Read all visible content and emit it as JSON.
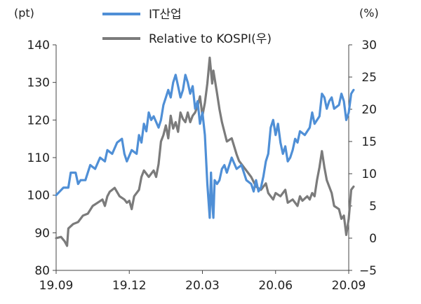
{
  "chart_data": {
    "type": "line",
    "left_unit": "(pt)",
    "right_unit": "(%)",
    "left_axis": {
      "min": 80,
      "max": 140,
      "ticks": [
        140,
        130,
        120,
        110,
        100,
        90,
        80
      ]
    },
    "right_axis": {
      "min": -5,
      "max": 30,
      "ticks": [
        "30",
        "25",
        "20",
        "15",
        "10",
        "5",
        "0",
        "−5"
      ],
      "tick_values": [
        30,
        25,
        20,
        15,
        10,
        5,
        0,
        -5
      ]
    },
    "x_axis": {
      "min": 0,
      "max": 12,
      "tick_positions": [
        0,
        3,
        6,
        9,
        12
      ],
      "tick_labels": [
        "19.09",
        "19.12",
        "20.03",
        "20.06",
        "20.09"
      ]
    },
    "legend": {
      "position": "top"
    },
    "series": [
      {
        "name": "IT산업",
        "axis": "left",
        "color": "#4f8fd6",
        "points": [
          [
            0,
            100
          ],
          [
            0.3,
            102
          ],
          [
            0.5,
            102
          ],
          [
            0.6,
            106
          ],
          [
            0.8,
            106
          ],
          [
            0.9,
            103
          ],
          [
            1.0,
            104
          ],
          [
            1.2,
            104
          ],
          [
            1.4,
            108
          ],
          [
            1.6,
            107
          ],
          [
            1.8,
            110
          ],
          [
            2.0,
            109
          ],
          [
            2.1,
            112
          ],
          [
            2.3,
            111
          ],
          [
            2.5,
            114
          ],
          [
            2.7,
            115
          ],
          [
            2.8,
            111
          ],
          [
            2.9,
            109
          ],
          [
            3.1,
            112
          ],
          [
            3.3,
            111
          ],
          [
            3.4,
            116
          ],
          [
            3.5,
            114
          ],
          [
            3.6,
            119
          ],
          [
            3.7,
            117
          ],
          [
            3.8,
            122
          ],
          [
            3.9,
            120
          ],
          [
            4.0,
            121
          ],
          [
            4.2,
            118
          ],
          [
            4.3,
            120
          ],
          [
            4.4,
            124
          ],
          [
            4.5,
            126
          ],
          [
            4.6,
            128
          ],
          [
            4.7,
            126
          ],
          [
            4.8,
            130
          ],
          [
            4.9,
            132
          ],
          [
            5.0,
            129
          ],
          [
            5.1,
            126
          ],
          [
            5.2,
            128
          ],
          [
            5.3,
            132
          ],
          [
            5.4,
            130
          ],
          [
            5.5,
            127
          ],
          [
            5.6,
            129
          ],
          [
            5.7,
            123
          ],
          [
            5.8,
            125
          ],
          [
            5.9,
            119
          ],
          [
            6.0,
            122
          ],
          [
            6.1,
            116
          ],
          [
            6.2,
            103
          ],
          [
            6.3,
            94
          ],
          [
            6.35,
            106
          ],
          [
            6.4,
            98
          ],
          [
            6.45,
            94
          ],
          [
            6.5,
            104
          ],
          [
            6.6,
            103
          ],
          [
            6.7,
            104
          ],
          [
            6.8,
            107
          ],
          [
            6.9,
            108
          ],
          [
            7.0,
            106
          ],
          [
            7.2,
            110
          ],
          [
            7.4,
            107
          ],
          [
            7.6,
            108
          ],
          [
            7.8,
            104
          ],
          [
            8.0,
            103
          ],
          [
            8.1,
            101
          ],
          [
            8.2,
            104
          ],
          [
            8.3,
            101
          ],
          [
            8.4,
            102
          ],
          [
            8.5,
            105
          ],
          [
            8.6,
            109
          ],
          [
            8.7,
            111
          ],
          [
            8.8,
            118
          ],
          [
            8.9,
            120
          ],
          [
            9.0,
            116
          ],
          [
            9.1,
            119
          ],
          [
            9.2,
            114
          ],
          [
            9.3,
            111
          ],
          [
            9.4,
            113
          ],
          [
            9.5,
            109
          ],
          [
            9.6,
            110
          ],
          [
            9.7,
            112
          ],
          [
            9.8,
            115
          ],
          [
            9.9,
            114
          ],
          [
            10.0,
            117
          ],
          [
            10.2,
            116
          ],
          [
            10.4,
            118
          ],
          [
            10.5,
            122
          ],
          [
            10.6,
            119
          ],
          [
            10.8,
            121
          ],
          [
            10.9,
            127
          ],
          [
            11.0,
            126
          ],
          [
            11.1,
            123
          ],
          [
            11.2,
            125
          ],
          [
            11.3,
            126
          ],
          [
            11.4,
            123
          ],
          [
            11.6,
            124
          ],
          [
            11.7,
            127
          ],
          [
            11.8,
            125
          ],
          [
            11.9,
            120
          ],
          [
            12.0,
            122
          ],
          [
            12.1,
            127
          ],
          [
            12.2,
            128
          ]
        ]
      },
      {
        "name": "Relative to KOSPI(우)",
        "axis": "right",
        "color": "#7b7b7b",
        "points": [
          [
            0,
            0
          ],
          [
            0.2,
            0.2
          ],
          [
            0.35,
            -0.5
          ],
          [
            0.45,
            -1.2
          ],
          [
            0.5,
            1.5
          ],
          [
            0.7,
            2.2
          ],
          [
            0.9,
            2.5
          ],
          [
            1.1,
            3.5
          ],
          [
            1.3,
            3.8
          ],
          [
            1.5,
            5.0
          ],
          [
            1.7,
            5.5
          ],
          [
            1.9,
            6.0
          ],
          [
            2.0,
            5.0
          ],
          [
            2.1,
            6.5
          ],
          [
            2.2,
            7.2
          ],
          [
            2.4,
            7.8
          ],
          [
            2.6,
            6.5
          ],
          [
            2.8,
            6.0
          ],
          [
            2.9,
            5.5
          ],
          [
            3.0,
            5.8
          ],
          [
            3.1,
            4.5
          ],
          [
            3.2,
            6.5
          ],
          [
            3.4,
            7.5
          ],
          [
            3.5,
            9.5
          ],
          [
            3.6,
            10.5
          ],
          [
            3.7,
            10.0
          ],
          [
            3.8,
            9.5
          ],
          [
            4.0,
            10.5
          ],
          [
            4.1,
            9.5
          ],
          [
            4.2,
            11.5
          ],
          [
            4.3,
            15.0
          ],
          [
            4.4,
            16.0
          ],
          [
            4.5,
            17.5
          ],
          [
            4.6,
            15.5
          ],
          [
            4.7,
            19.0
          ],
          [
            4.8,
            17.0
          ],
          [
            4.9,
            18.0
          ],
          [
            5.0,
            16.5
          ],
          [
            5.1,
            19.5
          ],
          [
            5.2,
            18.5
          ],
          [
            5.3,
            18.0
          ],
          [
            5.4,
            19.5
          ],
          [
            5.5,
            18.0
          ],
          [
            5.6,
            19.0
          ],
          [
            5.7,
            19.5
          ],
          [
            5.8,
            20.5
          ],
          [
            5.9,
            22.0
          ],
          [
            6.0,
            19.0
          ],
          [
            6.1,
            21.0
          ],
          [
            6.2,
            24.0
          ],
          [
            6.3,
            28.0
          ],
          [
            6.4,
            24.0
          ],
          [
            6.45,
            26.0
          ],
          [
            6.6,
            22.5
          ],
          [
            6.7,
            20.0
          ],
          [
            6.8,
            18.0
          ],
          [
            7.0,
            15.0
          ],
          [
            7.2,
            15.5
          ],
          [
            7.4,
            13.0
          ],
          [
            7.5,
            12.0
          ],
          [
            7.7,
            11.0
          ],
          [
            7.9,
            10.0
          ],
          [
            8.0,
            9.5
          ],
          [
            8.2,
            8.0
          ],
          [
            8.4,
            7.5
          ],
          [
            8.6,
            8.5
          ],
          [
            8.7,
            7.0
          ],
          [
            8.9,
            6.0
          ],
          [
            9.0,
            7.0
          ],
          [
            9.2,
            6.5
          ],
          [
            9.4,
            7.5
          ],
          [
            9.5,
            5.5
          ],
          [
            9.7,
            6.0
          ],
          [
            9.9,
            5.0
          ],
          [
            10.0,
            6.5
          ],
          [
            10.1,
            5.8
          ],
          [
            10.3,
            6.5
          ],
          [
            10.4,
            6.0
          ],
          [
            10.5,
            7.0
          ],
          [
            10.6,
            6.5
          ],
          [
            10.7,
            9.0
          ],
          [
            10.8,
            11.0
          ],
          [
            10.9,
            13.5
          ],
          [
            11.0,
            11.0
          ],
          [
            11.1,
            9.0
          ],
          [
            11.2,
            8.0
          ],
          [
            11.3,
            7.0
          ],
          [
            11.4,
            5.0
          ],
          [
            11.6,
            4.5
          ],
          [
            11.7,
            3.0
          ],
          [
            11.8,
            3.5
          ],
          [
            11.9,
            0.5
          ],
          [
            12.0,
            3.0
          ],
          [
            12.1,
            7.5
          ],
          [
            12.2,
            8.0
          ]
        ]
      }
    ]
  }
}
